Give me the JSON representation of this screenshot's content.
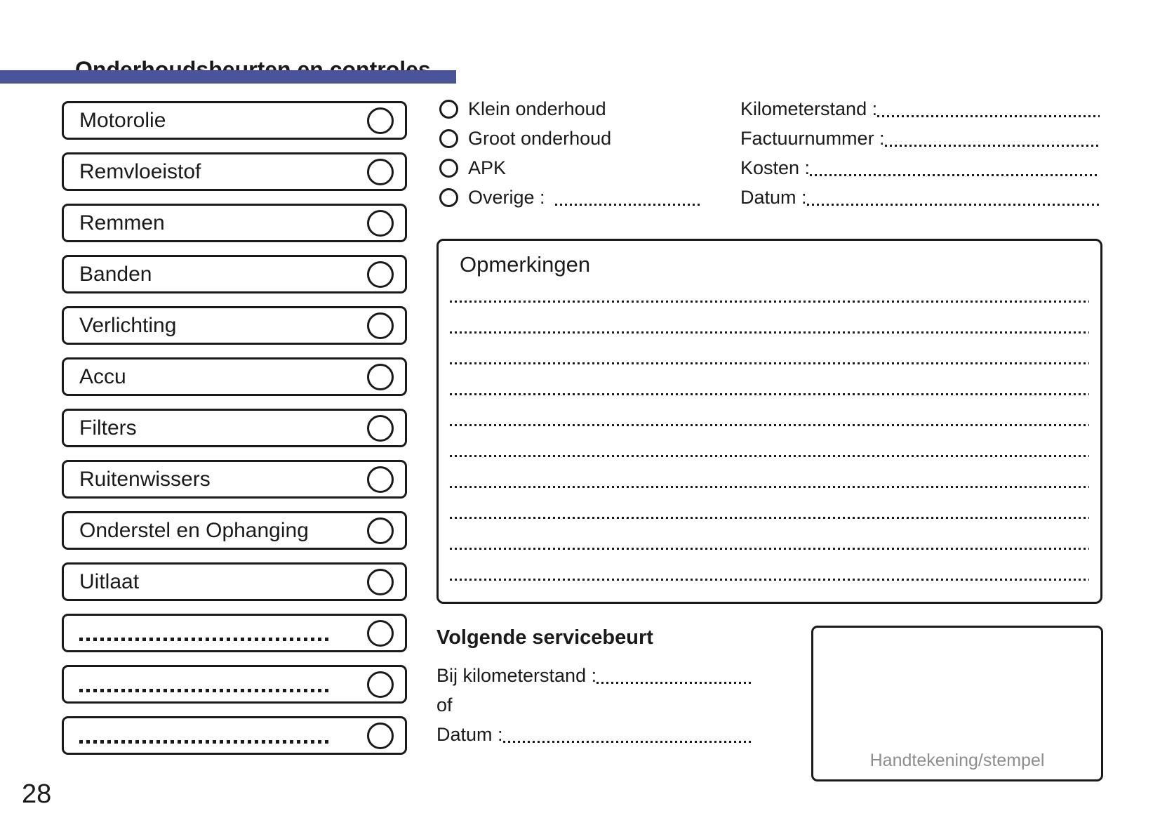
{
  "colors": {
    "accent": "#4a549b",
    "ink": "#1a1a1a",
    "muted": "#8d8d8d"
  },
  "header": {
    "title": "Onderhoudsbeurten en controles",
    "page_number": "28"
  },
  "checklist": {
    "items": [
      {
        "label": "Motorolie"
      },
      {
        "label": "Remvloeistof"
      },
      {
        "label": "Remmen"
      },
      {
        "label": "Banden"
      },
      {
        "label": "Verlichting"
      },
      {
        "label": "Accu"
      },
      {
        "label": "Filters"
      },
      {
        "label": "Ruitenwissers"
      },
      {
        "label": "Onderstel en Ophanging"
      },
      {
        "label": "Uitlaat"
      },
      {
        "label": "",
        "blank": true
      },
      {
        "label": "",
        "blank": true
      },
      {
        "label": "",
        "blank": true
      }
    ]
  },
  "service_type": {
    "options": [
      {
        "label": "Klein onderhoud"
      },
      {
        "label": "Groot onderhoud"
      },
      {
        "label": "APK"
      },
      {
        "label": "Overige :",
        "line": true
      }
    ]
  },
  "service_fields": [
    {
      "label": "Kilometerstand :"
    },
    {
      "label": "Factuurnummer :"
    },
    {
      "label": "Kosten :"
    },
    {
      "label": "Datum :"
    }
  ],
  "remarks": {
    "title": "Opmerkingen",
    "line_count": 10
  },
  "next_service": {
    "title": "Volgende servicebeurt",
    "fields": [
      {
        "label": "Bij kilometerstand :",
        "line": true
      },
      {
        "label": "of"
      },
      {
        "label": "Datum :",
        "line": true
      }
    ]
  },
  "signature": {
    "label": "Handtekening/stempel"
  }
}
